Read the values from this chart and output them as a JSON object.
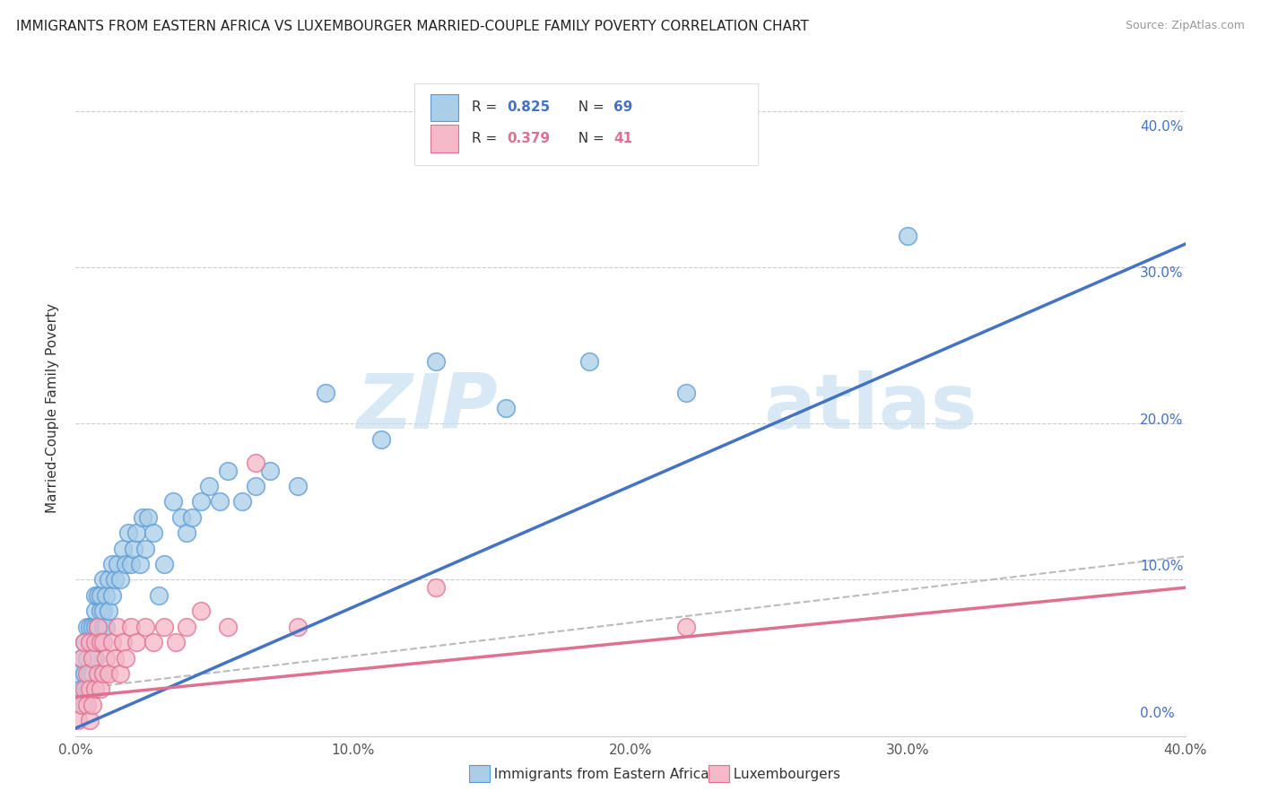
{
  "title": "IMMIGRANTS FROM EASTERN AFRICA VS LUXEMBOURGER MARRIED-COUPLE FAMILY POVERTY CORRELATION CHART",
  "source": "Source: ZipAtlas.com",
  "ylabel": "Married-Couple Family Poverty",
  "legend_labels": [
    "Immigrants from Eastern Africa",
    "Luxembourgers"
  ],
  "legend_R_blue": "0.825",
  "legend_N_blue": "69",
  "legend_R_pink": "0.379",
  "legend_N_pink": "41",
  "blue_fill": "#aacde8",
  "blue_edge": "#5b9bd5",
  "pink_fill": "#f4b8c8",
  "pink_edge": "#e07090",
  "line_blue": "#4472c4",
  "line_pink": "#e07090",
  "line_gray": "#bbbbbb",
  "right_axis_color": "#4472c4",
  "watermark_zip_color": "#c8dff0",
  "watermark_atlas_color": "#c8dff0",
  "xlim": [
    0.0,
    0.4
  ],
  "ylim": [
    0.0,
    0.42
  ],
  "xticks": [
    0.0,
    0.1,
    0.2,
    0.3,
    0.4
  ],
  "yticks": [
    0.0,
    0.1,
    0.2,
    0.3,
    0.4
  ],
  "xticklabels": [
    "0.0%",
    "10.0%",
    "20.0%",
    "30.0%",
    "40.0%"
  ],
  "yticklabels_right": [
    "0.0%",
    "10.0%",
    "20.0%",
    "30.0%",
    "40.0%"
  ],
  "blue_x": [
    0.001,
    0.002,
    0.002,
    0.003,
    0.003,
    0.003,
    0.004,
    0.004,
    0.004,
    0.005,
    0.005,
    0.005,
    0.006,
    0.006,
    0.006,
    0.007,
    0.007,
    0.007,
    0.007,
    0.008,
    0.008,
    0.008,
    0.009,
    0.009,
    0.009,
    0.01,
    0.01,
    0.01,
    0.011,
    0.011,
    0.012,
    0.012,
    0.013,
    0.013,
    0.014,
    0.015,
    0.016,
    0.017,
    0.018,
    0.019,
    0.02,
    0.021,
    0.022,
    0.023,
    0.024,
    0.025,
    0.026,
    0.028,
    0.03,
    0.032,
    0.035,
    0.038,
    0.04,
    0.042,
    0.045,
    0.048,
    0.052,
    0.055,
    0.06,
    0.065,
    0.07,
    0.08,
    0.09,
    0.11,
    0.13,
    0.155,
    0.185,
    0.22,
    0.3
  ],
  "blue_y": [
    0.04,
    0.03,
    0.05,
    0.02,
    0.04,
    0.06,
    0.03,
    0.05,
    0.07,
    0.04,
    0.06,
    0.07,
    0.04,
    0.06,
    0.07,
    0.05,
    0.07,
    0.08,
    0.09,
    0.06,
    0.07,
    0.09,
    0.06,
    0.08,
    0.09,
    0.07,
    0.08,
    0.1,
    0.07,
    0.09,
    0.08,
    0.1,
    0.09,
    0.11,
    0.1,
    0.11,
    0.1,
    0.12,
    0.11,
    0.13,
    0.11,
    0.12,
    0.13,
    0.11,
    0.14,
    0.12,
    0.14,
    0.13,
    0.09,
    0.11,
    0.15,
    0.14,
    0.13,
    0.14,
    0.15,
    0.16,
    0.15,
    0.17,
    0.15,
    0.16,
    0.17,
    0.16,
    0.22,
    0.19,
    0.24,
    0.21,
    0.24,
    0.22,
    0.32
  ],
  "pink_x": [
    0.001,
    0.002,
    0.002,
    0.003,
    0.003,
    0.004,
    0.004,
    0.005,
    0.005,
    0.005,
    0.006,
    0.006,
    0.007,
    0.007,
    0.008,
    0.008,
    0.009,
    0.009,
    0.01,
    0.01,
    0.011,
    0.012,
    0.013,
    0.014,
    0.015,
    0.016,
    0.017,
    0.018,
    0.02,
    0.022,
    0.025,
    0.028,
    0.032,
    0.036,
    0.04,
    0.045,
    0.055,
    0.065,
    0.08,
    0.13,
    0.22
  ],
  "pink_y": [
    0.01,
    0.02,
    0.05,
    0.03,
    0.06,
    0.02,
    0.04,
    0.01,
    0.03,
    0.06,
    0.02,
    0.05,
    0.03,
    0.06,
    0.04,
    0.07,
    0.03,
    0.06,
    0.04,
    0.06,
    0.05,
    0.04,
    0.06,
    0.05,
    0.07,
    0.04,
    0.06,
    0.05,
    0.07,
    0.06,
    0.07,
    0.06,
    0.07,
    0.06,
    0.07,
    0.08,
    0.07,
    0.175,
    0.07,
    0.095,
    0.07
  ],
  "blue_line_x": [
    0.0,
    0.4
  ],
  "blue_line_y": [
    0.005,
    0.315
  ],
  "pink_line_x": [
    0.0,
    0.4
  ],
  "pink_line_y": [
    0.025,
    0.095
  ],
  "gray_line_x": [
    0.0,
    0.4
  ],
  "gray_line_y": [
    0.03,
    0.115
  ]
}
